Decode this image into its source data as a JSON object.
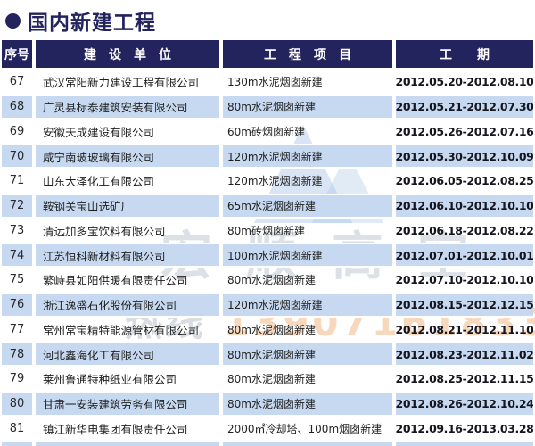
{
  "header": {
    "bullet": "",
    "title": "国内新建工程"
  },
  "table": {
    "headers": [
      "序号",
      "建　设　单　位",
      "工　程　项　目",
      "工　　期"
    ],
    "rows": [
      {
        "no": "67",
        "unit": "武汉常阳新力建设工程有限公司",
        "project": "130m水泥烟囱新建",
        "period": "2012.05.20-2012.08.10"
      },
      {
        "no": "68",
        "unit": "广灵县标泰建筑安装有限公司",
        "project": "80m水泥烟囱新建",
        "period": "2012.05.21-2012.07.30"
      },
      {
        "no": "69",
        "unit": "安徽天成建设有限公司",
        "project": "60m砖烟囱新建",
        "period": "2012.05.26-2012.07.16"
      },
      {
        "no": "70",
        "unit": "咸宁南玻玻璃有限公司",
        "project": "120m水泥烟囱新建",
        "period": "2012.05.30-2012.10.09"
      },
      {
        "no": "71",
        "unit": "山东大泽化工有限公司",
        "project": "120m水泥烟囱新建",
        "period": "2012.06.05-2012.08.25"
      },
      {
        "no": "72",
        "unit": "鞍钢关宝山选矿厂",
        "project": "65m水泥烟囱新建",
        "period": "2012.06.10-2012.10.10"
      },
      {
        "no": "73",
        "unit": "清远加多宝饮料有限公司",
        "project": "80m砖烟囱新建",
        "period": "2012.06.18-2012.08.22"
      },
      {
        "no": "74",
        "unit": "江苏恒科新材料有限公司",
        "project": "100m水泥烟囱新建",
        "period": "2012.07.01-2012.10.01"
      },
      {
        "no": "75",
        "unit": "繁峙县如阳供暖有限责任公司",
        "project": "80m水泥烟囱新建",
        "period": "2012.07.10-2012.10.10"
      },
      {
        "no": "76",
        "unit": "浙江逸盛石化股份有限公司",
        "project": "120m水泥烟囱新建",
        "period": "2012.08.15-2012.12.15"
      },
      {
        "no": "77",
        "unit": "常州常宝精特能源管材有限公司",
        "project": "80m水泥烟囱新建",
        "period": "2012.08.21-2012.11.10"
      },
      {
        "no": "78",
        "unit": "河北鑫海化工有限公司",
        "project": "80m水泥烟囱新建",
        "period": "2012.08.23-2012.11.02"
      },
      {
        "no": "79",
        "unit": "莱州鲁通特种纸业有限公司",
        "project": "80m水泥烟囱新建",
        "period": "2012.08.25-2012.11.15"
      },
      {
        "no": "80",
        "unit": "甘肃一安装建筑劳务有限公司",
        "project": "80m水泥烟囱新建",
        "period": "2012.08.26-2012.10.24"
      },
      {
        "no": "81",
        "unit": "镇江新华电集团有限责任公司",
        "project": "2000㎡冷却塔、100m烟囱新建",
        "period": "2012.09.16-2013.03.28"
      }
    ]
  },
  "watermark": {
    "brand": "宏顺高空",
    "hotline_label": "热线",
    "hotline_phone": "13907161833"
  },
  "colors": {
    "navy": "#23235e",
    "stripe": "#c6d9f0",
    "watermark_orange": "#e87d23"
  }
}
